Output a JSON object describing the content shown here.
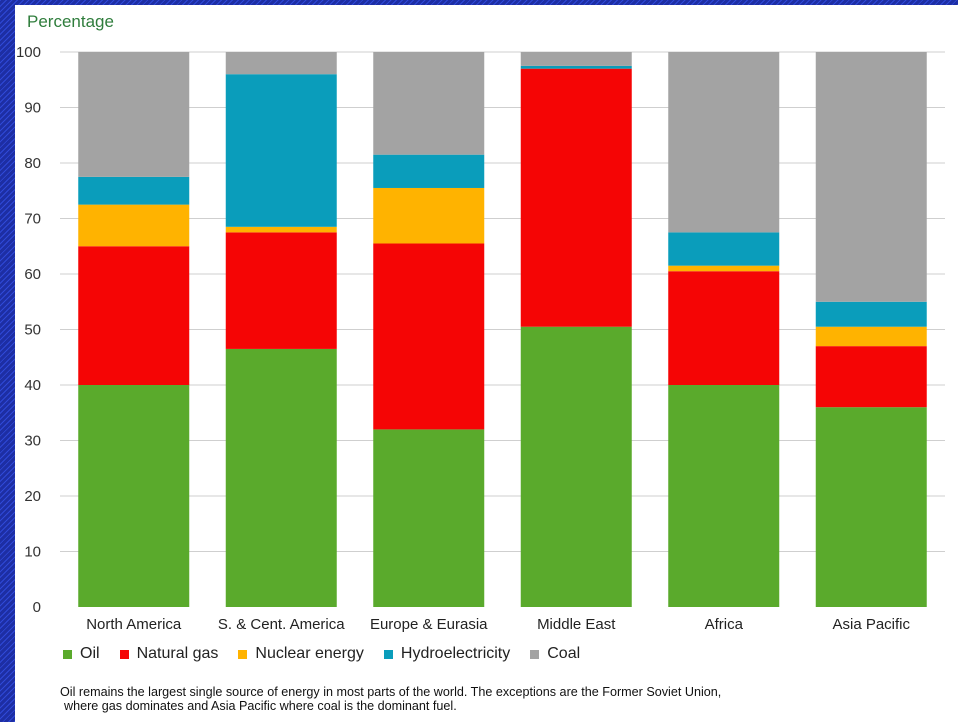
{
  "chart_data": {
    "type": "bar",
    "stacked": true,
    "ylabel": "Percentage",
    "ylim": [
      0,
      100
    ],
    "yticks": [
      0,
      10,
      20,
      30,
      40,
      50,
      60,
      70,
      80,
      90,
      100
    ],
    "grid": true,
    "legend_position": "bottom",
    "categories": [
      "North America",
      "S. & Cent. America",
      "Europe & Eurasia",
      "Middle East",
      "Africa",
      "Asia Pacific"
    ],
    "series": [
      {
        "name": "Oil",
        "color": "#5aaa2c",
        "values": [
          40,
          46.5,
          32,
          50.5,
          40,
          36
        ]
      },
      {
        "name": "Natural gas",
        "color": "#f50505",
        "values": [
          25,
          21,
          33.5,
          46.5,
          20.5,
          11
        ]
      },
      {
        "name": "Nuclear energy",
        "color": "#ffb300",
        "values": [
          7.5,
          1,
          10,
          0,
          1,
          3.5
        ]
      },
      {
        "name": "Hydroelectricity",
        "color": "#0a9dbb",
        "values": [
          5,
          27.5,
          6,
          0.5,
          6,
          4.5
        ]
      },
      {
        "name": "Coal",
        "color": "#a3a3a3",
        "values": [
          22.5,
          4,
          18.5,
          2.5,
          32.5,
          45
        ]
      }
    ]
  },
  "caption": {
    "line1": "Oil remains the largest single source of energy in most parts of the world. The exceptions are the Former Soviet Union,",
    "line2": "where gas dominates and Asia Pacific where coal is the dominant fuel."
  }
}
